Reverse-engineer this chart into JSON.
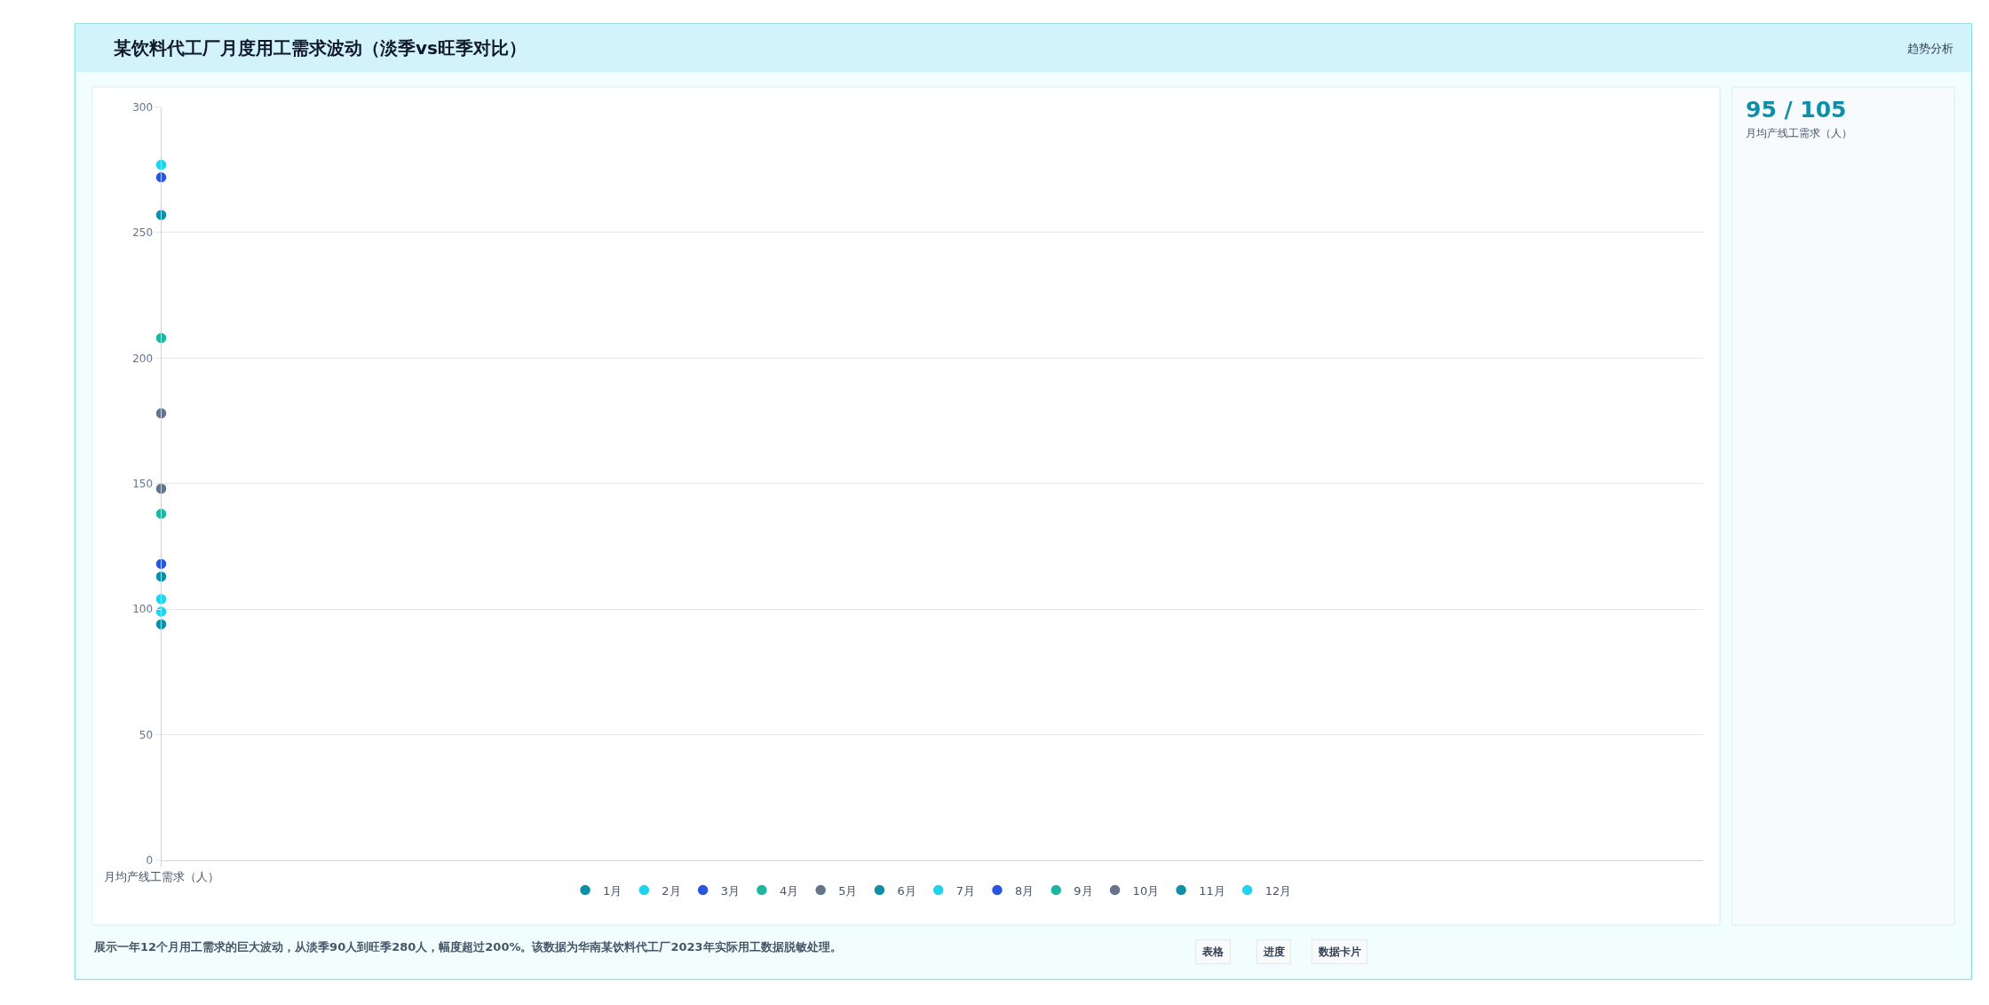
{
  "chart_data": [
    {
      "type": "scatter",
      "title": "某饮料代工厂月度用工需求波动（淡季vs旺季对比）",
      "categories": [
        "月均产线工需求（人）"
      ],
      "series": [
        {
          "name": "1月",
          "color": "#0e8fa8",
          "values": [
            94
          ]
        },
        {
          "name": "2月",
          "color": "#22d3ee",
          "values": [
            99
          ]
        },
        {
          "name": "3月",
          "color": "#2a56dc",
          "values": [
            118
          ]
        },
        {
          "name": "4月",
          "color": "#1fb5a0",
          "values": [
            138
          ]
        },
        {
          "name": "5月",
          "color": "#64748b",
          "values": [
            148
          ]
        },
        {
          "name": "6月",
          "color": "#0e8fa8",
          "values": [
            257
          ]
        },
        {
          "name": "7月",
          "color": "#22d3ee",
          "values": [
            277
          ]
        },
        {
          "name": "8月",
          "color": "#2a56dc",
          "values": [
            272
          ]
        },
        {
          "name": "9月",
          "color": "#1fb5a0",
          "values": [
            208
          ]
        },
        {
          "name": "10月",
          "color": "#64748b",
          "values": [
            178
          ]
        },
        {
          "name": "11月",
          "color": "#0e8fa8",
          "values": [
            113
          ]
        },
        {
          "name": "12月",
          "color": "#22d3ee",
          "values": [
            104
          ]
        }
      ],
      "ylim": [
        0,
        300
      ],
      "yticks": [
        0,
        50,
        100,
        150,
        200,
        250,
        300
      ],
      "grid": "y",
      "legend": "bottom",
      "marker": "circle",
      "annotations": [
        "趋势分析",
        "展示一年12个月用工需求的巨大波动，从淡季90人到旺季280人，幅度超过200%。该数据为华南某饮料代工厂2023年实际用工数据脱敏处理。",
        "表格",
        "进度",
        "数据卡片"
      ]
    },
    {
      "type": "other",
      "title": "95 / 105",
      "subtitle": "月均产线工需求（人）"
    }
  ]
}
